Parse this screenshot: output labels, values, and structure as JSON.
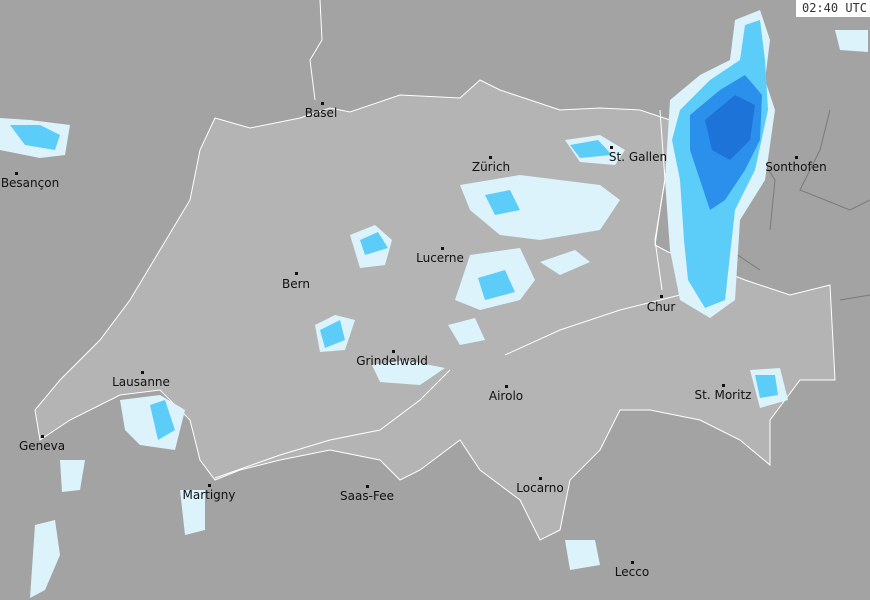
{
  "timestamp": "02:40 UTC",
  "colors": {
    "background": "#a3a3a3",
    "switzerland": "#b4b4b4",
    "border": "#ffffff",
    "intl_border": "#7a7a7a",
    "rain_light": "#dcf3fb",
    "rain_moderate": "#5ccdf8",
    "rain_heavy": "#2a90ec",
    "rain_very_heavy": "#1e73d8"
  },
  "cities": [
    {
      "name": "Basel"
    },
    {
      "name": "Besançon"
    },
    {
      "name": "Zürich"
    },
    {
      "name": "St. Gallen"
    },
    {
      "name": "Sonthofen"
    },
    {
      "name": "Lucerne"
    },
    {
      "name": "Bern"
    },
    {
      "name": "Chur"
    },
    {
      "name": "Grindelwald"
    },
    {
      "name": "Lausanne"
    },
    {
      "name": "St. Moritz"
    },
    {
      "name": "Airolo"
    },
    {
      "name": "Geneva"
    },
    {
      "name": "Locarno"
    },
    {
      "name": "Martigny"
    },
    {
      "name": "Saas-Fee"
    },
    {
      "name": "Lecco"
    }
  ]
}
